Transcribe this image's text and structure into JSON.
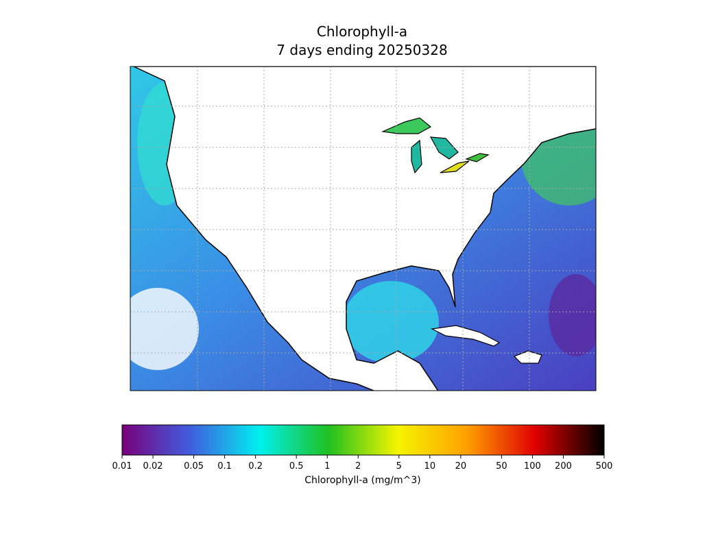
{
  "map": {
    "title": "Chlorophyll-a",
    "subtitle": "7 days ending 20250328"
  },
  "colorbar": {
    "label": "Chlorophyll-a (mg/m^3)",
    "scale": "log",
    "lim": [
      0.01,
      500
    ],
    "ticks": [
      0.01,
      0.02,
      0.05,
      0.1,
      0.2,
      0.5,
      1,
      2,
      5,
      10,
      20,
      50,
      100,
      200,
      500
    ],
    "colormap": [
      "#7a007a",
      "#3f5fe0",
      "#00f0f0",
      "#20c020",
      "#f5f500",
      "#ffa000",
      "#e00000",
      "#000000"
    ]
  }
}
